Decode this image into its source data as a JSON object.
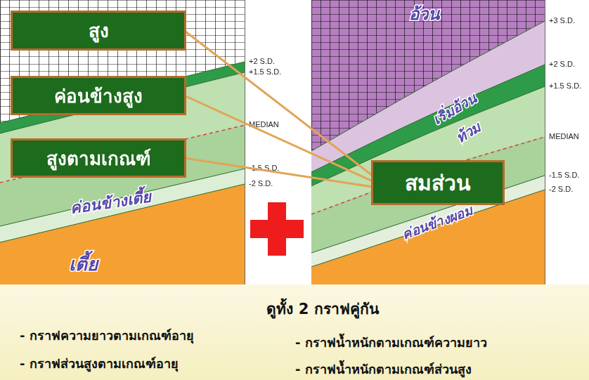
{
  "chart_data": [
    {
      "type": "line",
      "x": [
        0,
        5,
        10
      ],
      "xlim": [
        0,
        10
      ],
      "ylim": [
        0,
        100
      ],
      "xticks": [
        0,
        0.4,
        0.8,
        1.2,
        1.6,
        2,
        2.4,
        2.8,
        3.2,
        3.6,
        4,
        4.4,
        4.8,
        5.2,
        5.6,
        6,
        6.4,
        6.8,
        7.2,
        7.6,
        8,
        8.4,
        8.8,
        9.2,
        9.6,
        10
      ],
      "yticks": [
        0,
        2.5,
        5,
        7.5,
        10,
        12.5,
        15,
        17.5,
        20,
        22.5,
        25,
        27.5,
        30,
        32.5,
        35,
        37.5,
        40,
        42.5,
        45,
        47.5,
        50,
        52.5,
        55,
        57.5,
        60,
        62.5,
        65,
        67.5,
        70,
        72.5,
        75,
        77.5,
        80,
        82.5,
        85,
        87.5,
        90,
        92.5,
        95,
        97.5,
        100
      ],
      "grid": true,
      "tick_labels": false,
      "color": "#ffffff",
      "series": [
        {
          "name": "-2 S.D.",
          "color": "#f5a033",
          "line_style": "solid",
          "values": [
            14.8,
            25.1,
            35.3
          ]
        },
        {
          "name": "-1.5 S.D.",
          "color": "#dcefd6",
          "line_style": "solid",
          "values": [
            20.5,
            30.6,
            40.7
          ]
        },
        {
          "name": "MEDIAN",
          "color": "#a9d39a",
          "line_style": "dashed",
          "values": [
            35.8,
            45.9,
            56.0
          ]
        },
        {
          "name": "+1.5 S.D.",
          "color": "#bfe0b0",
          "line_style": "solid",
          "values": [
            53.1,
            63.9,
            74.6
          ]
        },
        {
          "name": "+2 S.D.",
          "color": "#2e9b48",
          "line_style": "solid",
          "values": [
            56.8,
            67.6,
            78.3
          ]
        }
      ],
      "annotations": [
        "ค่อนข้างเตี้ย",
        "เตี้ย"
      ]
    },
    {
      "type": "line",
      "x": [
        0,
        5,
        10
      ],
      "xlim": [
        0,
        10
      ],
      "ylim": [
        0,
        100
      ],
      "xticks": [
        0,
        0.4,
        0.8,
        1.2,
        1.6,
        2,
        2.4,
        2.8,
        3.2,
        3.6,
        4,
        4.4,
        4.8,
        5.2,
        5.6,
        6,
        6.4,
        6.8,
        7.2,
        7.6,
        8,
        8.4,
        8.8,
        9.2,
        9.6,
        10
      ],
      "yticks": [
        0,
        2.5,
        5,
        7.5,
        10,
        12.5,
        15,
        17.5,
        20,
        22.5,
        25,
        27.5,
        30,
        32.5,
        35,
        37.5,
        40,
        42.5,
        45,
        47.5,
        50,
        52.5,
        55,
        57.5,
        60,
        62.5,
        65,
        67.5,
        70,
        72.5,
        75,
        77.5,
        80,
        82.5,
        85,
        87.5,
        90,
        92.5,
        95,
        97.5,
        100
      ],
      "grid": true,
      "tick_labels": false,
      "color": "#b57fc0",
      "series": [
        {
          "name": "-2 S.D.",
          "color": "#f5a033",
          "line_style": "solid",
          "values": [
            6.2,
            19.8,
            33.3
          ]
        },
        {
          "name": "-1.5 S.D.",
          "color": "#e3efdc",
          "line_style": "solid",
          "values": [
            11.1,
            24.7,
            38.3
          ]
        },
        {
          "name": "MEDIAN",
          "color": "#a9d39a",
          "line_style": "dashed",
          "values": [
            24.7,
            39.5,
            51.9
          ]
        },
        {
          "name": "+1.5 S.D.",
          "color": "#bfe0b0",
          "line_style": "solid",
          "values": [
            34.6,
            53.1,
            69.6
          ]
        },
        {
          "name": "+2 S.D.",
          "color": "#2e9b48",
          "line_style": "solid",
          "values": [
            39.5,
            59.3,
            77.3
          ]
        },
        {
          "name": "+3 S.D.",
          "color": "#dcc3e0",
          "line_style": "solid",
          "values": [
            46.9,
            70.4,
            92.6
          ]
        }
      ],
      "annotations": [
        "อ้วน",
        "เริ่มอ้วน",
        "ท้วม",
        "ค่อนข้างผอม"
      ]
    }
  ],
  "callouts": {
    "left": [
      "สูง",
      "ค่อนข้างสูง",
      "สูงตามเกณฑ์"
    ],
    "right": "สมส่วน"
  },
  "footer": {
    "heading": "ดูทั้ง 2 กราฟคู่กัน",
    "left": [
      "- กราฟความยาวตามเกณฑ์อายุ",
      "- กราฟส่วนสูงตามเกณฑ์อายุ"
    ],
    "right": [
      "- กราฟน้ำหนักตามเกณฑ์ความยาว",
      "- กราฟน้ำหนักตามเกณฑ์ส่วนสูง"
    ]
  }
}
